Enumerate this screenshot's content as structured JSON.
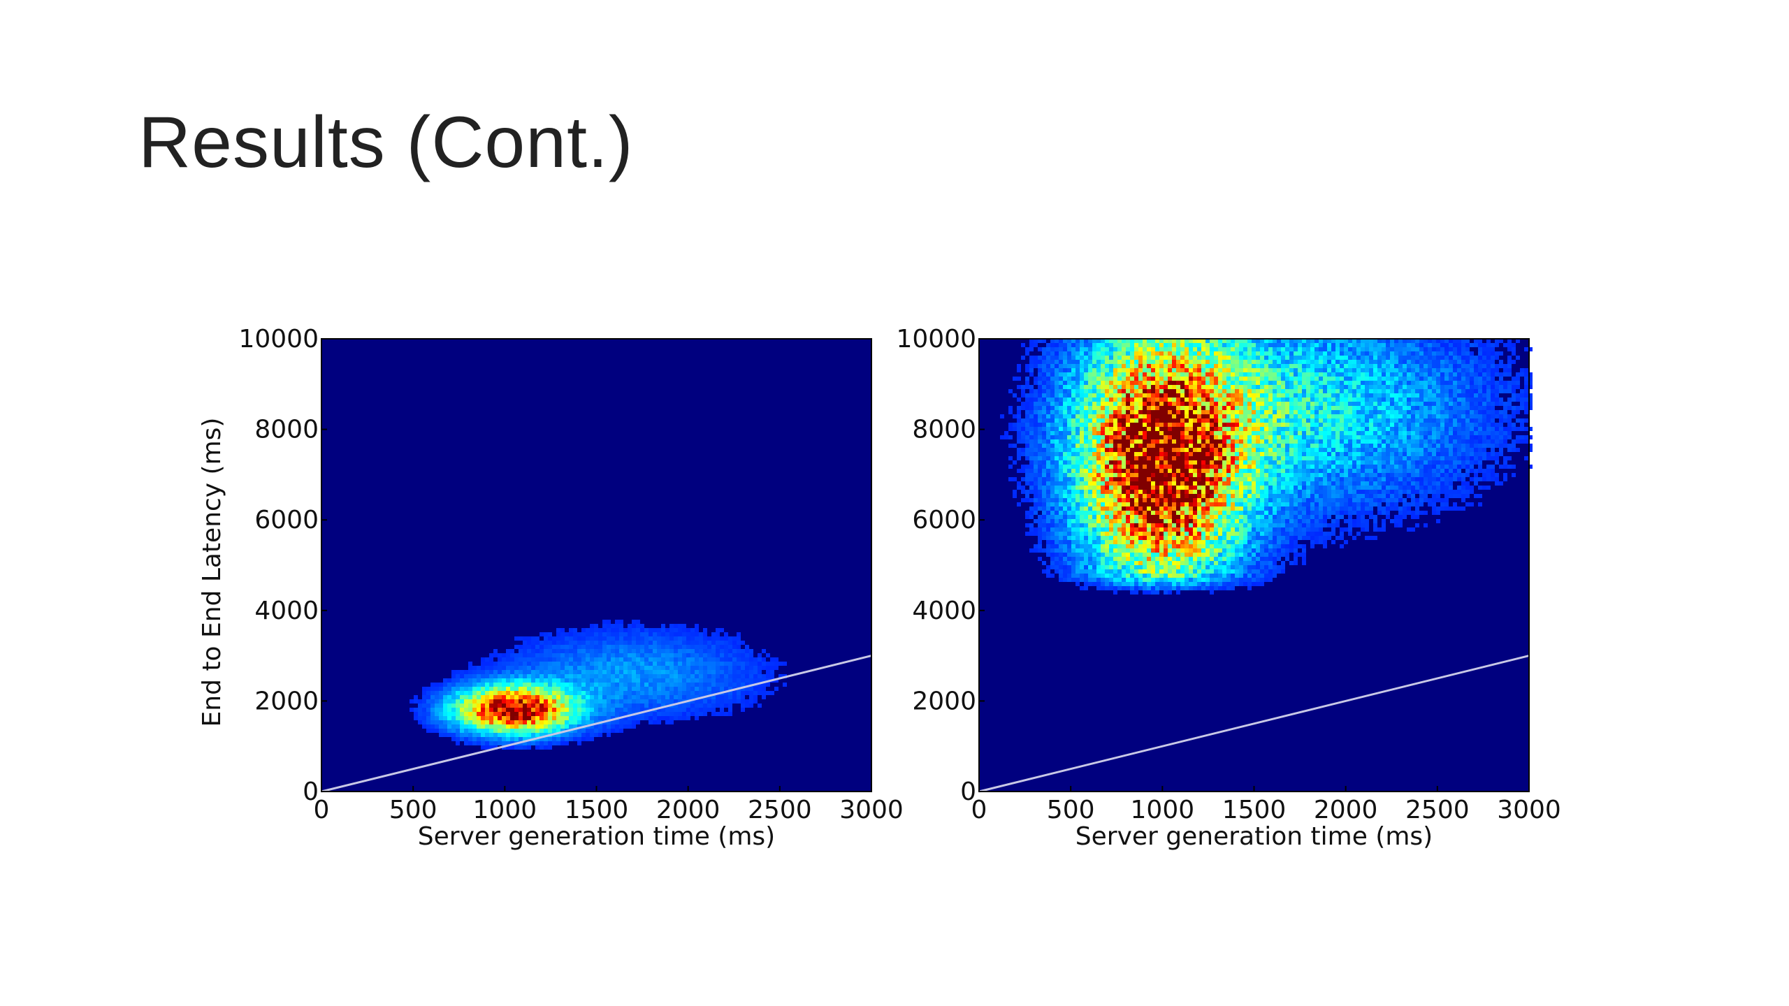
{
  "slide": {
    "title": "Results (Cont.)"
  },
  "chart_data": [
    {
      "type": "heatmap",
      "title": "",
      "xlabel": "Server generation time (ms)",
      "ylabel": "End to End Latency (ms)",
      "xlim": [
        0,
        3000
      ],
      "ylim": [
        0,
        10000
      ],
      "x_ticks": [
        "0",
        "500",
        "1000",
        "1500",
        "2000",
        "2500",
        "3000"
      ],
      "y_ticks": [
        "0",
        "2000",
        "4000",
        "6000",
        "8000",
        "10000"
      ],
      "reference_line": {
        "x": [
          0,
          3000
        ],
        "y": [
          0,
          3000
        ],
        "label": ""
      },
      "density_peak": {
        "x": 1050,
        "y": 1800
      },
      "density_spread": {
        "x": 220,
        "y": 350
      },
      "colormap": [
        "#00007f",
        "#0000ff",
        "#00ffff",
        "#ffff00",
        "#ff0000",
        "#7f0000"
      ],
      "background_color": "#00007f"
    },
    {
      "type": "heatmap",
      "title": "",
      "xlabel": "Server generation time (ms)",
      "ylabel": "",
      "xlim": [
        0,
        3000
      ],
      "ylim": [
        0,
        10000
      ],
      "x_ticks": [
        "0",
        "500",
        "1000",
        "1500",
        "2000",
        "2500",
        "3000"
      ],
      "y_ticks": [
        "0",
        "2000",
        "4000",
        "6000",
        "8000",
        "10000"
      ],
      "reference_line": {
        "x": [
          0,
          3000
        ],
        "y": [
          0,
          3000
        ],
        "label": ""
      },
      "density_peak": {
        "x": 1000,
        "y": 7200
      },
      "density_spread": {
        "x": 300,
        "y": 1800
      },
      "density_floor_y": 4300,
      "colormap": [
        "#00007f",
        "#0000ff",
        "#00ffff",
        "#ffff00",
        "#ff0000",
        "#7f0000"
      ],
      "background_color": "#00007f"
    }
  ]
}
